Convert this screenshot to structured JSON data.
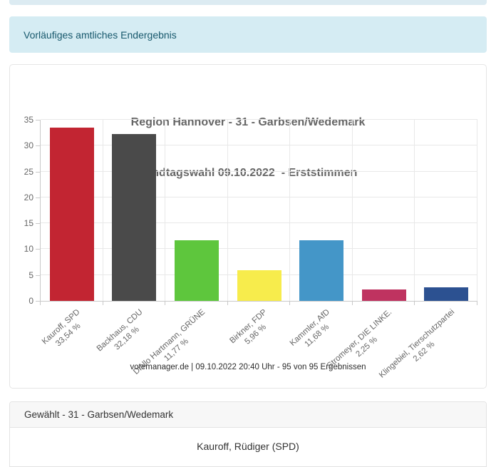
{
  "top_strip": {
    "color": "#dcebf2"
  },
  "alert": {
    "text": "Vorläufiges amtliches Endergebnis",
    "bg": "#d5ecf3",
    "text_color": "#17586c"
  },
  "chart_data": {
    "type": "bar",
    "title": "Region Hannover - 31 - Garbsen/Wedemark",
    "subtitle": "Landtagswahl 09.10.2022  - Erststimmen",
    "categories": [
      "Kauroff, SPD",
      "Backhaus, CDU",
      "Diallo Hartmann, GRÜNE",
      "Birkner, FDP",
      "Kammler, AfD",
      "Stromeyer, DIE LINKE.",
      "Klingebiel, Tierschutzpartei"
    ],
    "values": [
      33.54,
      32.18,
      11.77,
      5.96,
      11.68,
      2.25,
      2.62
    ],
    "value_labels": [
      "33,54 %",
      "32,18 %",
      "11,77 %",
      "5,96 %",
      "11,68 %",
      "2,25 %",
      "2,62 %"
    ],
    "bar_colors": [
      "#c22532",
      "#4a4a4a",
      "#5ec63d",
      "#f7ec4c",
      "#4496c8",
      "#bf3360",
      "#2c5191"
    ],
    "ylim": [
      0,
      35
    ],
    "yticks": [
      0,
      5,
      10,
      15,
      20,
      25,
      30,
      35
    ],
    "grid": true,
    "legend_position": "none",
    "footer": "votemanager.de | 09.10.2022 20:40 Uhr - 95 von 95 Ergebnissen"
  },
  "elected": {
    "header": "Gewählt - 31 - Garbsen/Wedemark",
    "name": "Kauroff, Rüdiger (SPD)"
  }
}
